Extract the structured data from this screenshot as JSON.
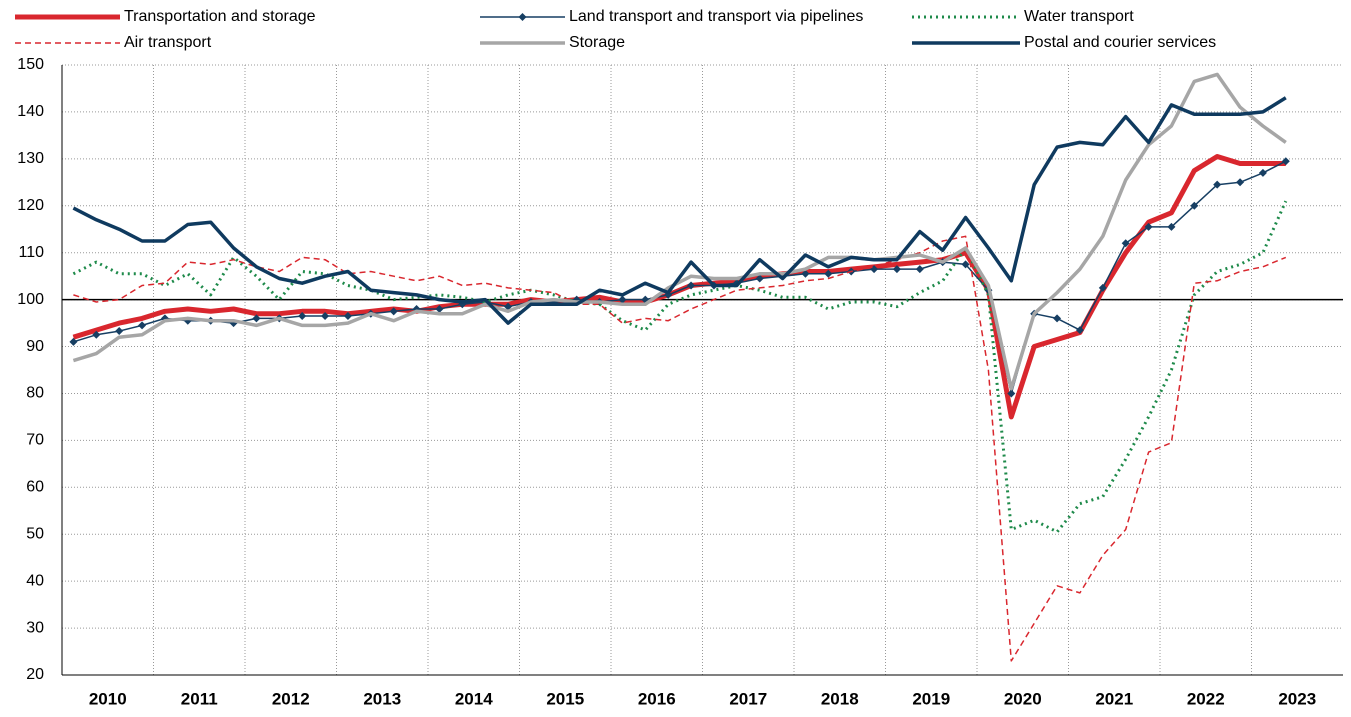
{
  "chart_data": {
    "type": "line",
    "categories": [
      "2010",
      null,
      null,
      null,
      "2011",
      null,
      null,
      null,
      "2012",
      null,
      null,
      null,
      "2013",
      null,
      null,
      null,
      "2014",
      null,
      null,
      null,
      "2015",
      null,
      null,
      null,
      "2016",
      null,
      null,
      null,
      "2017",
      null,
      null,
      null,
      "2018",
      null,
      null,
      null,
      "2019",
      null,
      null,
      null,
      "2020",
      null,
      null,
      null,
      "2021",
      null,
      null,
      null,
      "2022",
      null,
      null,
      null,
      "2023",
      null,
      null,
      null
    ],
    "ylim": [
      20,
      150
    ],
    "yticks": [
      20,
      30,
      40,
      50,
      60,
      70,
      80,
      90,
      100,
      110,
      120,
      130,
      140,
      150
    ],
    "grid": true,
    "reference_line": 100,
    "legend": "top",
    "series": [
      {
        "name": "Transportation and storage",
        "color": "#d9272e",
        "style": "solid",
        "width": 5,
        "values": [
          92,
          93.5,
          95,
          96,
          97.5,
          98,
          97.5,
          98,
          97,
          97,
          97.5,
          97.5,
          97,
          97.5,
          98,
          97.5,
          98.5,
          99,
          99,
          99,
          100,
          99.5,
          100,
          100.5,
          99.5,
          99.5,
          101,
          103,
          103.5,
          104,
          105,
          105.5,
          106,
          106,
          106.5,
          107,
          107.5,
          108,
          108.5,
          110,
          102,
          75,
          90,
          91.5,
          93,
          102,
          110,
          116.5,
          118.5,
          127.5,
          130.5,
          129,
          129,
          129,
          null,
          null
        ]
      },
      {
        "name": "Land transport and transport via pipelines",
        "color": "#173f63",
        "style": "solid",
        "width": 1.5,
        "marker": "diamond",
        "values": [
          91,
          92.5,
          93.3,
          94.5,
          96,
          95.5,
          95.5,
          95,
          96,
          96,
          96.5,
          96.5,
          96.5,
          97,
          97.5,
          98,
          98,
          99,
          99.5,
          98.5,
          99.5,
          99.5,
          100,
          99.5,
          100,
          100,
          101,
          103,
          103,
          103.5,
          104.5,
          105,
          105.5,
          105.5,
          106,
          106.5,
          106.5,
          106.5,
          108,
          107.5,
          102,
          80,
          97,
          96,
          93.5,
          102.5,
          112,
          115.5,
          115.5,
          120,
          124.5,
          125,
          127,
          129.5,
          null,
          null
        ]
      },
      {
        "name": "Water transport",
        "color": "#1e8a4a",
        "style": "dotted",
        "width": 3,
        "values": [
          105.5,
          108,
          105.5,
          105.5,
          103,
          105.5,
          101,
          109,
          105,
          100,
          106,
          105.5,
          103,
          102,
          100,
          100.5,
          101,
          100.5,
          99.5,
          101,
          102,
          101,
          99.5,
          99,
          95.5,
          93.5,
          99,
          101,
          102,
          103,
          102,
          100.5,
          100.5,
          98,
          99.5,
          99.5,
          98.5,
          101.5,
          104,
          111,
          101,
          51,
          53,
          50.5,
          56.5,
          58,
          66,
          75,
          85,
          101,
          106,
          107.5,
          110,
          121,
          null,
          null
        ]
      },
      {
        "name": "Air transport",
        "color": "#d9272e",
        "style": "dashed",
        "width": 1.5,
        "values": [
          101,
          99.5,
          100,
          103,
          103.5,
          108,
          107.5,
          108.5,
          107,
          106,
          109,
          108.5,
          105.5,
          106,
          105,
          104,
          105,
          103,
          103.5,
          102.5,
          102,
          101.5,
          99,
          99,
          95,
          96,
          95.5,
          98,
          100,
          102,
          102.5,
          103,
          104,
          104.5,
          106,
          107,
          108.5,
          110,
          112.5,
          113.5,
          85,
          23,
          31,
          39,
          37.5,
          45.5,
          51,
          67.5,
          69.5,
          103.5,
          104,
          106,
          107,
          109,
          null,
          null
        ]
      },
      {
        "name": "Storage",
        "color": "#a6a6a6",
        "style": "solid",
        "width": 3.5,
        "values": [
          87,
          88.5,
          92,
          92.5,
          95.5,
          96,
          95.5,
          95.5,
          94.5,
          96,
          94.5,
          94.5,
          95,
          97,
          95.5,
          97.5,
          97,
          97,
          99,
          97.5,
          99.5,
          100,
          99.5,
          99.5,
          99,
          99,
          102.5,
          105,
          104.5,
          104.5,
          105.5,
          105.5,
          106.5,
          109,
          109,
          108.5,
          109,
          109.5,
          108,
          111,
          103,
          81,
          97,
          101.5,
          106.5,
          113.5,
          125.5,
          133,
          137,
          146.5,
          148,
          141,
          137,
          133.5,
          null,
          null
        ]
      },
      {
        "name": "Postal and courier services",
        "color": "#0f3a5f",
        "style": "solid",
        "width": 3.5,
        "values": [
          119.5,
          117,
          115,
          112.5,
          112.5,
          116,
          116.5,
          111,
          107,
          104.5,
          103.5,
          105,
          106,
          102,
          101.5,
          101,
          100,
          99.5,
          100,
          95,
          99,
          99,
          99,
          102,
          101,
          103.5,
          101.5,
          108,
          103,
          103,
          108.5,
          104.5,
          109.5,
          107,
          109,
          108.5,
          108.5,
          114.5,
          110.5,
          117.5,
          111,
          104,
          124.5,
          132.5,
          133.5,
          133,
          139,
          133.5,
          141.5,
          139.5,
          139.5,
          139.5,
          140,
          143,
          null,
          null
        ]
      }
    ]
  }
}
